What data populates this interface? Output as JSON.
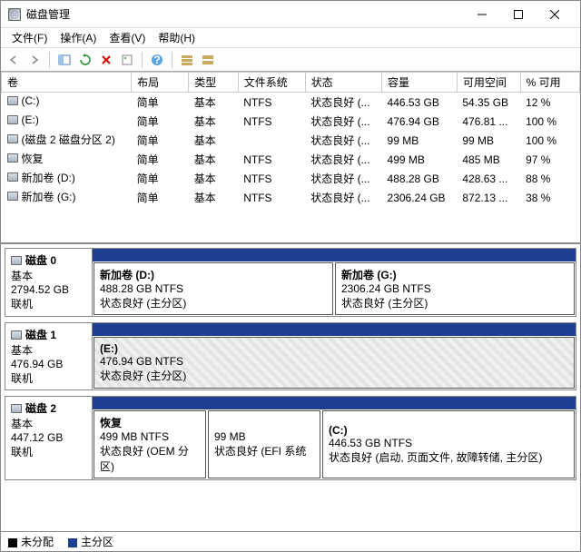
{
  "window": {
    "title": "磁盘管理"
  },
  "menu": {
    "file": "文件(F)",
    "action": "操作(A)",
    "view": "查看(V)",
    "help": "帮助(H)"
  },
  "columns": {
    "volume": "卷",
    "layout": "布局",
    "type": "类型",
    "filesystem": "文件系统",
    "status": "状态",
    "capacity": "容量",
    "freespace": "可用空间",
    "pctfree": "% 可用"
  },
  "volumes": [
    {
      "name": "(C:)",
      "layout": "简单",
      "type": "基本",
      "fs": "NTFS",
      "status": "状态良好 (...",
      "cap": "446.53 GB",
      "free": "54.35 GB",
      "pct": "12 %"
    },
    {
      "name": "(E:)",
      "layout": "简单",
      "type": "基本",
      "fs": "NTFS",
      "status": "状态良好 (...",
      "cap": "476.94 GB",
      "free": "476.81 ...",
      "pct": "100 %"
    },
    {
      "name": "(磁盘 2 磁盘分区 2)",
      "layout": "简单",
      "type": "基本",
      "fs": "",
      "status": "状态良好 (...",
      "cap": "99 MB",
      "free": "99 MB",
      "pct": "100 %"
    },
    {
      "name": "恢复",
      "layout": "简单",
      "type": "基本",
      "fs": "NTFS",
      "status": "状态良好 (...",
      "cap": "499 MB",
      "free": "485 MB",
      "pct": "97 %"
    },
    {
      "name": "新加卷 (D:)",
      "layout": "简单",
      "type": "基本",
      "fs": "NTFS",
      "status": "状态良好 (...",
      "cap": "488.28 GB",
      "free": "428.63 ...",
      "pct": "88 %"
    },
    {
      "name": "新加卷 (G:)",
      "layout": "简单",
      "type": "基本",
      "fs": "NTFS",
      "status": "状态良好 (...",
      "cap": "2306.24 GB",
      "free": "872.13 ...",
      "pct": "38 %"
    }
  ],
  "disks": [
    {
      "name": "磁盘 0",
      "type": "基本",
      "size": "2794.52 GB",
      "state": "联机",
      "partitions": [
        {
          "label": "新加卷  (D:)",
          "line2": "488.28 GB NTFS",
          "line3": "状态良好 (主分区)",
          "flex": 1,
          "hatched": false
        },
        {
          "label": "新加卷  (G:)",
          "line2": "2306.24 GB NTFS",
          "line3": "状态良好 (主分区)",
          "flex": 1,
          "hatched": false
        }
      ]
    },
    {
      "name": "磁盘 1",
      "type": "基本",
      "size": "476.94 GB",
      "state": "联机",
      "partitions": [
        {
          "label": "(E:)",
          "line2": "476.94 GB NTFS",
          "line3": "状态良好 (主分区)",
          "flex": 1,
          "hatched": true
        }
      ]
    },
    {
      "name": "磁盘 2",
      "type": "基本",
      "size": "447.12 GB",
      "state": "联机",
      "partitions": [
        {
          "label": "恢复",
          "line2": "499 MB NTFS",
          "line3": "状态良好 (OEM 分区)",
          "flex": 1,
          "hatched": false
        },
        {
          "label": "",
          "line2": "99 MB",
          "line3": "状态良好 (EFI 系统",
          "flex": 1,
          "hatched": false
        },
        {
          "label": "(C:)",
          "line2": "446.53 GB NTFS",
          "line3": "状态良好 (启动, 页面文件, 故障转储, 主分区)",
          "flex": 2.4,
          "hatched": false
        }
      ]
    }
  ],
  "legend": {
    "unallocated": "未分配",
    "primary": "主分区"
  },
  "colors": {
    "header_blue": "#1e3f8f",
    "unalloc": "#000000"
  },
  "colwidths": {
    "volume": 125,
    "layout": 58,
    "type": 50,
    "fs": 68,
    "status": 68,
    "cap": 74,
    "free": 64,
    "pct": 60
  }
}
